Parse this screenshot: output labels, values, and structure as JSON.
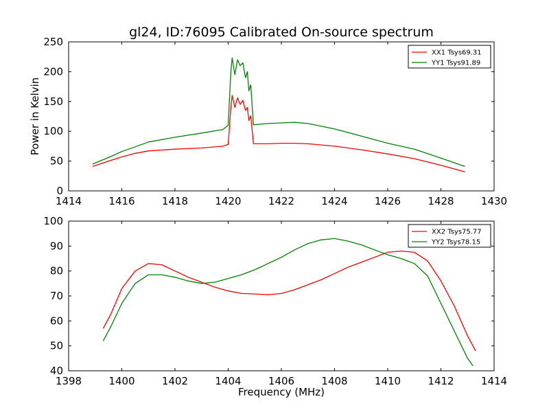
{
  "title": "gl24, ID:76095 Calibrated On-source spectrum",
  "chart_data": [
    {
      "type": "line",
      "xlim": [
        1414,
        1430
      ],
      "ylim": [
        0,
        250
      ],
      "xticks": [
        1414,
        1416,
        1418,
        1420,
        1422,
        1424,
        1426,
        1428,
        1430
      ],
      "yticks": [
        0,
        50,
        100,
        150,
        200,
        250
      ],
      "xlabel": "",
      "ylabel": "Power in Kelvin",
      "legend_position": "top-right",
      "series": [
        {
          "name": "XX1 Tsys69.31",
          "color": "#ff0000",
          "x": [
            1414.9,
            1415.5,
            1416,
            1416.5,
            1417,
            1418,
            1419,
            1419.8,
            1420,
            1420.1,
            1420.15,
            1420.25,
            1420.35,
            1420.45,
            1420.55,
            1420.65,
            1420.72,
            1420.78,
            1420.85,
            1420.95,
            1421.5,
            1422,
            1422.5,
            1423,
            1424,
            1425,
            1426,
            1427,
            1428,
            1428.9
          ],
          "values": [
            41,
            50,
            57,
            63,
            67,
            70,
            72,
            75,
            78,
            140,
            160,
            140,
            156,
            145,
            152,
            135,
            140,
            118,
            126,
            79,
            79,
            80,
            80,
            79,
            75,
            69,
            62,
            54,
            43,
            32
          ]
        },
        {
          "name": "YY1 Tsys91.89",
          "color": "#008000",
          "x": [
            1414.9,
            1415.5,
            1416,
            1416.5,
            1417,
            1418,
            1419,
            1419.8,
            1420,
            1420.1,
            1420.15,
            1420.25,
            1420.35,
            1420.45,
            1420.55,
            1420.65,
            1420.72,
            1420.78,
            1420.85,
            1420.95,
            1421.5,
            1422,
            1422.5,
            1423,
            1424,
            1425,
            1426,
            1427,
            1428,
            1428.9
          ],
          "values": [
            45,
            56,
            66,
            74,
            82,
            90,
            97,
            103,
            110,
            200,
            223,
            195,
            220,
            210,
            215,
            190,
            200,
            168,
            178,
            111,
            113,
            114,
            115,
            113,
            104,
            92,
            80,
            70,
            55,
            41
          ]
        }
      ]
    },
    {
      "type": "line",
      "xlim": [
        1398,
        1414
      ],
      "ylim": [
        40,
        100
      ],
      "xticks": [
        1398,
        1400,
        1402,
        1404,
        1406,
        1408,
        1410,
        1412,
        1414
      ],
      "yticks": [
        40,
        50,
        60,
        70,
        80,
        90,
        100
      ],
      "xlabel": "Frequency (MHz)",
      "ylabel": "",
      "legend_position": "top-right",
      "series": [
        {
          "name": "XX2 Tsys75.77",
          "color": "#ff0000",
          "x": [
            1399.3,
            1399.6,
            1400,
            1400.5,
            1401,
            1401.5,
            1402,
            1402.5,
            1403,
            1403.5,
            1404,
            1404.5,
            1405,
            1405.5,
            1406,
            1406.5,
            1407,
            1407.5,
            1408,
            1408.5,
            1409,
            1409.5,
            1410,
            1410.5,
            1411,
            1411.5,
            1412,
            1412.5,
            1413,
            1413.3
          ],
          "values": [
            57,
            63,
            73,
            80,
            83,
            82.5,
            80,
            77.5,
            75.5,
            73.5,
            72,
            71,
            70.8,
            70.5,
            71,
            72.5,
            74.5,
            76.5,
            79,
            81.5,
            83.5,
            85.5,
            87.5,
            88,
            87.5,
            84,
            76,
            66,
            54,
            48
          ]
        },
        {
          "name": "YY2 Tsys78.15",
          "color": "#008000",
          "x": [
            1399.3,
            1399.6,
            1400,
            1400.5,
            1401,
            1401.5,
            1402,
            1402.5,
            1403,
            1403.5,
            1404,
            1404.5,
            1405,
            1405.5,
            1406,
            1406.5,
            1407,
            1407.5,
            1408,
            1408.5,
            1409,
            1409.5,
            1410,
            1410.5,
            1411,
            1411.5,
            1412,
            1412.5,
            1413,
            1413.2
          ],
          "values": [
            52,
            58,
            67,
            75,
            78.5,
            78.5,
            77.5,
            76,
            75,
            75.5,
            77,
            78.5,
            80.5,
            83,
            85.5,
            88.5,
            91,
            92.5,
            93,
            92,
            90.5,
            88.5,
            86.5,
            85,
            83,
            78,
            67,
            56,
            45,
            42
          ]
        }
      ]
    }
  ]
}
